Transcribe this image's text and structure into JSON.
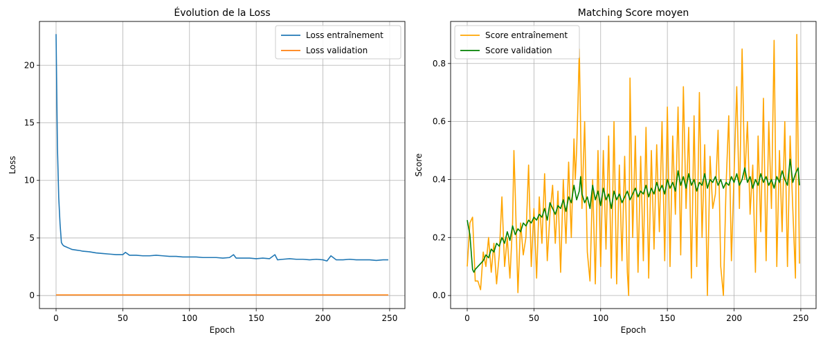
{
  "chart_data": [
    {
      "type": "line",
      "title": "Évolution de la Loss",
      "xlabel": "Epoch",
      "ylabel": "Loss",
      "xlim": [
        -12.45,
        261.45
      ],
      "ylim": [
        -1.13,
        23.8
      ],
      "xticks": [
        0,
        50,
        100,
        150,
        200,
        250
      ],
      "yticks": [
        0,
        5,
        10,
        15,
        20
      ],
      "grid": true,
      "legend_position": "top-right",
      "series": [
        {
          "name": "Loss entraînement",
          "color": "#1f77b4",
          "x": [
            0,
            1,
            2,
            3,
            4,
            5,
            6,
            8,
            10,
            12,
            15,
            18,
            20,
            25,
            30,
            35,
            40,
            45,
            50,
            52,
            55,
            60,
            65,
            70,
            75,
            80,
            85,
            90,
            95,
            100,
            105,
            110,
            115,
            120,
            125,
            130,
            133,
            135,
            140,
            145,
            150,
            155,
            160,
            164,
            166,
            170,
            175,
            180,
            185,
            190,
            195,
            200,
            203,
            206,
            210,
            215,
            220,
            225,
            230,
            235,
            240,
            245,
            247,
            249
          ],
          "y": [
            22.7,
            13.0,
            8.5,
            6.2,
            4.6,
            4.4,
            4.3,
            4.2,
            4.1,
            4.0,
            3.95,
            3.9,
            3.85,
            3.8,
            3.7,
            3.65,
            3.6,
            3.55,
            3.55,
            3.75,
            3.5,
            3.5,
            3.45,
            3.45,
            3.5,
            3.45,
            3.4,
            3.4,
            3.35,
            3.35,
            3.35,
            3.3,
            3.3,
            3.3,
            3.25,
            3.3,
            3.55,
            3.25,
            3.25,
            3.25,
            3.2,
            3.25,
            3.2,
            3.55,
            3.1,
            3.15,
            3.2,
            3.15,
            3.15,
            3.1,
            3.15,
            3.1,
            3.0,
            3.45,
            3.1,
            3.1,
            3.15,
            3.1,
            3.1,
            3.1,
            3.05,
            3.1,
            3.1,
            3.1
          ]
        },
        {
          "name": "Loss validation",
          "color": "#ff7f0e",
          "x": [
            0,
            249
          ],
          "y": [
            0.05,
            0.05
          ]
        }
      ]
    },
    {
      "type": "line",
      "title": "Matching Score moyen",
      "xlabel": "Epoch",
      "ylabel": "Score",
      "xlim": [
        -12.45,
        261.45
      ],
      "ylim": [
        -0.045,
        0.945
      ],
      "xticks": [
        0,
        50,
        100,
        150,
        200,
        250
      ],
      "yticks": [
        0.0,
        0.2,
        0.4,
        0.6,
        0.8
      ],
      "grid": true,
      "legend_position": "top-left",
      "series": [
        {
          "name": "Score entraînement",
          "color": "#ffa500",
          "x": [
            0,
            2,
            4,
            6,
            8,
            10,
            12,
            14,
            16,
            18,
            20,
            22,
            24,
            26,
            28,
            30,
            32,
            34,
            35,
            36,
            38,
            40,
            42,
            44,
            46,
            48,
            50,
            52,
            54,
            56,
            58,
            60,
            62,
            64,
            66,
            68,
            70,
            72,
            74,
            76,
            78,
            80,
            81,
            82,
            83,
            84,
            86,
            88,
            90,
            92,
            94,
            96,
            98,
            100,
            102,
            104,
            106,
            108,
            110,
            112,
            114,
            116,
            118,
            120,
            121,
            122,
            124,
            126,
            128,
            130,
            132,
            134,
            136,
            138,
            140,
            142,
            144,
            146,
            148,
            150,
            152,
            154,
            156,
            158,
            160,
            162,
            164,
            166,
            168,
            170,
            172,
            174,
            176,
            178,
            180,
            182,
            184,
            186,
            188,
            190,
            192,
            194,
            196,
            198,
            200,
            202,
            204,
            206,
            208,
            210,
            212,
            214,
            216,
            218,
            220,
            222,
            224,
            226,
            228,
            230,
            232,
            234,
            236,
            238,
            240,
            242,
            244,
            246,
            247,
            248,
            249
          ],
          "y": [
            0.1,
            0.25,
            0.27,
            0.05,
            0.05,
            0.02,
            0.15,
            0.1,
            0.2,
            0.08,
            0.18,
            0.04,
            0.14,
            0.34,
            0.1,
            0.2,
            0.06,
            0.25,
            0.5,
            0.35,
            0.01,
            0.25,
            0.14,
            0.2,
            0.45,
            0.1,
            0.3,
            0.06,
            0.34,
            0.18,
            0.42,
            0.12,
            0.28,
            0.38,
            0.18,
            0.36,
            0.08,
            0.4,
            0.18,
            0.46,
            0.2,
            0.54,
            0.4,
            0.5,
            0.66,
            0.85,
            0.3,
            0.6,
            0.15,
            0.05,
            0.4,
            0.04,
            0.5,
            0.1,
            0.5,
            0.16,
            0.55,
            0.06,
            0.6,
            0.04,
            0.45,
            0.12,
            0.48,
            0.08,
            0.0,
            0.75,
            0.2,
            0.55,
            0.08,
            0.48,
            0.12,
            0.58,
            0.06,
            0.5,
            0.16,
            0.52,
            0.22,
            0.6,
            0.12,
            0.65,
            0.1,
            0.55,
            0.28,
            0.65,
            0.14,
            0.72,
            0.3,
            0.58,
            0.06,
            0.62,
            0.1,
            0.7,
            0.2,
            0.52,
            0.0,
            0.48,
            0.3,
            0.35,
            0.57,
            0.1,
            0.0,
            0.38,
            0.62,
            0.12,
            0.42,
            0.72,
            0.3,
            0.85,
            0.4,
            0.6,
            0.28,
            0.45,
            0.08,
            0.55,
            0.22,
            0.68,
            0.12,
            0.6,
            0.3,
            0.88,
            0.1,
            0.5,
            0.22,
            0.6,
            0.1,
            0.55,
            0.3,
            0.06,
            0.9,
            0.5,
            0.11
          ]
        },
        {
          "name": "Score validation",
          "color": "#008000",
          "x": [
            0,
            2,
            4,
            5,
            6,
            8,
            10,
            12,
            14,
            16,
            18,
            20,
            22,
            24,
            26,
            28,
            30,
            32,
            34,
            36,
            38,
            40,
            42,
            44,
            46,
            48,
            50,
            52,
            54,
            56,
            58,
            60,
            62,
            64,
            66,
            68,
            70,
            72,
            74,
            76,
            78,
            80,
            82,
            84,
            85,
            86,
            88,
            90,
            92,
            94,
            96,
            98,
            100,
            102,
            104,
            106,
            108,
            110,
            112,
            114,
            116,
            118,
            120,
            122,
            124,
            126,
            128,
            130,
            132,
            134,
            136,
            138,
            140,
            142,
            144,
            146,
            148,
            150,
            152,
            154,
            156,
            158,
            160,
            162,
            164,
            166,
            168,
            170,
            172,
            174,
            176,
            178,
            180,
            182,
            184,
            186,
            188,
            190,
            192,
            194,
            196,
            198,
            200,
            202,
            204,
            206,
            208,
            210,
            212,
            214,
            216,
            218,
            220,
            222,
            224,
            226,
            228,
            230,
            232,
            234,
            236,
            238,
            240,
            242,
            244,
            246,
            248,
            249
          ],
          "y": [
            0.26,
            0.21,
            0.09,
            0.08,
            0.09,
            0.1,
            0.11,
            0.12,
            0.14,
            0.13,
            0.16,
            0.15,
            0.18,
            0.17,
            0.2,
            0.18,
            0.22,
            0.19,
            0.24,
            0.21,
            0.23,
            0.22,
            0.25,
            0.24,
            0.26,
            0.25,
            0.27,
            0.26,
            0.28,
            0.27,
            0.3,
            0.26,
            0.32,
            0.3,
            0.28,
            0.31,
            0.3,
            0.33,
            0.29,
            0.34,
            0.32,
            0.38,
            0.33,
            0.36,
            0.41,
            0.35,
            0.32,
            0.34,
            0.3,
            0.38,
            0.33,
            0.36,
            0.31,
            0.37,
            0.33,
            0.35,
            0.3,
            0.36,
            0.33,
            0.35,
            0.32,
            0.34,
            0.36,
            0.33,
            0.35,
            0.37,
            0.34,
            0.36,
            0.35,
            0.38,
            0.34,
            0.37,
            0.35,
            0.39,
            0.36,
            0.38,
            0.35,
            0.4,
            0.37,
            0.39,
            0.36,
            0.43,
            0.38,
            0.41,
            0.37,
            0.42,
            0.38,
            0.4,
            0.36,
            0.39,
            0.38,
            0.42,
            0.37,
            0.4,
            0.39,
            0.41,
            0.38,
            0.4,
            0.37,
            0.39,
            0.38,
            0.41,
            0.39,
            0.42,
            0.38,
            0.4,
            0.44,
            0.39,
            0.41,
            0.37,
            0.4,
            0.38,
            0.42,
            0.39,
            0.41,
            0.38,
            0.4,
            0.37,
            0.41,
            0.39,
            0.43,
            0.4,
            0.38,
            0.47,
            0.39,
            0.42,
            0.44,
            0.38
          ]
        }
      ]
    }
  ]
}
